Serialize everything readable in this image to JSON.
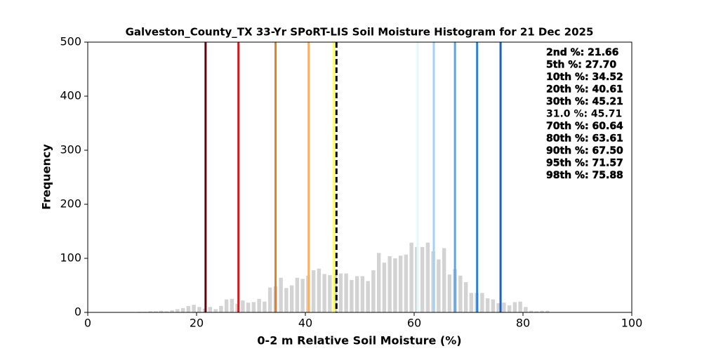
{
  "chart_data": {
    "type": "histogram",
    "title": "Galveston_County_TX 33-Yr SPoRT-LIS Soil Moisture Histogram for 21 Dec 2025",
    "x_label": "0-2 m Relative Soil Moisture (%)",
    "y_label": "Frequency",
    "xlim": [
      0,
      100
    ],
    "xticks": [
      0,
      20,
      40,
      60,
      80,
      100
    ],
    "ylim": [
      0,
      500
    ],
    "yticks": [
      0,
      100,
      200,
      300,
      400,
      500
    ],
    "color": "#d3d3d3",
    "bins": [
      9,
      10,
      11,
      12,
      13,
      14,
      15,
      16,
      17,
      18,
      19,
      20,
      21,
      22,
      23,
      24,
      25,
      26,
      27,
      28,
      29,
      30,
      31,
      32,
      33,
      34,
      35,
      36,
      37,
      38,
      39,
      40,
      41,
      42,
      43,
      44,
      45,
      46,
      47,
      48,
      49,
      50,
      51,
      52,
      53,
      54,
      55,
      56,
      57,
      58,
      59,
      60,
      61,
      62,
      63,
      64,
      65,
      66,
      67,
      68,
      69,
      70,
      71,
      72,
      73,
      74,
      75,
      76,
      77,
      78,
      79,
      80,
      81,
      82,
      83,
      84,
      85
    ],
    "values": [
      1,
      1,
      2,
      2,
      3,
      2,
      4,
      6,
      8,
      12,
      14,
      10,
      7,
      10,
      6,
      12,
      24,
      25,
      16,
      22,
      18,
      19,
      25,
      20,
      46,
      48,
      64,
      45,
      50,
      64,
      62,
      68,
      78,
      81,
      71,
      69,
      70,
      72,
      72,
      60,
      67,
      67,
      58,
      78,
      110,
      92,
      104,
      100,
      105,
      107,
      129,
      121,
      121,
      129,
      113,
      98,
      119,
      70,
      80,
      68,
      56,
      36,
      36,
      36,
      26,
      24,
      17,
      18,
      13,
      19,
      20,
      10,
      3,
      2,
      3,
      3
    ],
    "percentiles": [
      {
        "label": "2nd %: 21.66",
        "value": 21.66,
        "color": "#67000d"
      },
      {
        "label": "5th %: 27.70",
        "value": 27.7,
        "color": "#d7191c"
      },
      {
        "label": "10th %: 34.52",
        "value": 34.52,
        "color": "#e6801f"
      },
      {
        "label": "20th %: 40.61",
        "value": 40.61,
        "color": "#fdae61"
      },
      {
        "label": "30th %: 45.21",
        "value": 45.21,
        "color": "#ffff66"
      },
      {
        "label": "31.0 %: 45.71",
        "value": 45.71,
        "color": "#000000",
        "dashed": true
      },
      {
        "label": "70th %: 60.64",
        "value": 60.64,
        "color": "#e0f8fb"
      },
      {
        "label": "80th %: 63.61",
        "value": 63.61,
        "color": "#a6d1ef"
      },
      {
        "label": "90th %: 67.50",
        "value": 67.5,
        "color": "#5aa5e6"
      },
      {
        "label": "95th %: 71.57",
        "value": 71.57,
        "color": "#2f82d8"
      },
      {
        "label": "98th %: 75.88",
        "value": 75.88,
        "color": "#1f5fbf"
      }
    ]
  }
}
